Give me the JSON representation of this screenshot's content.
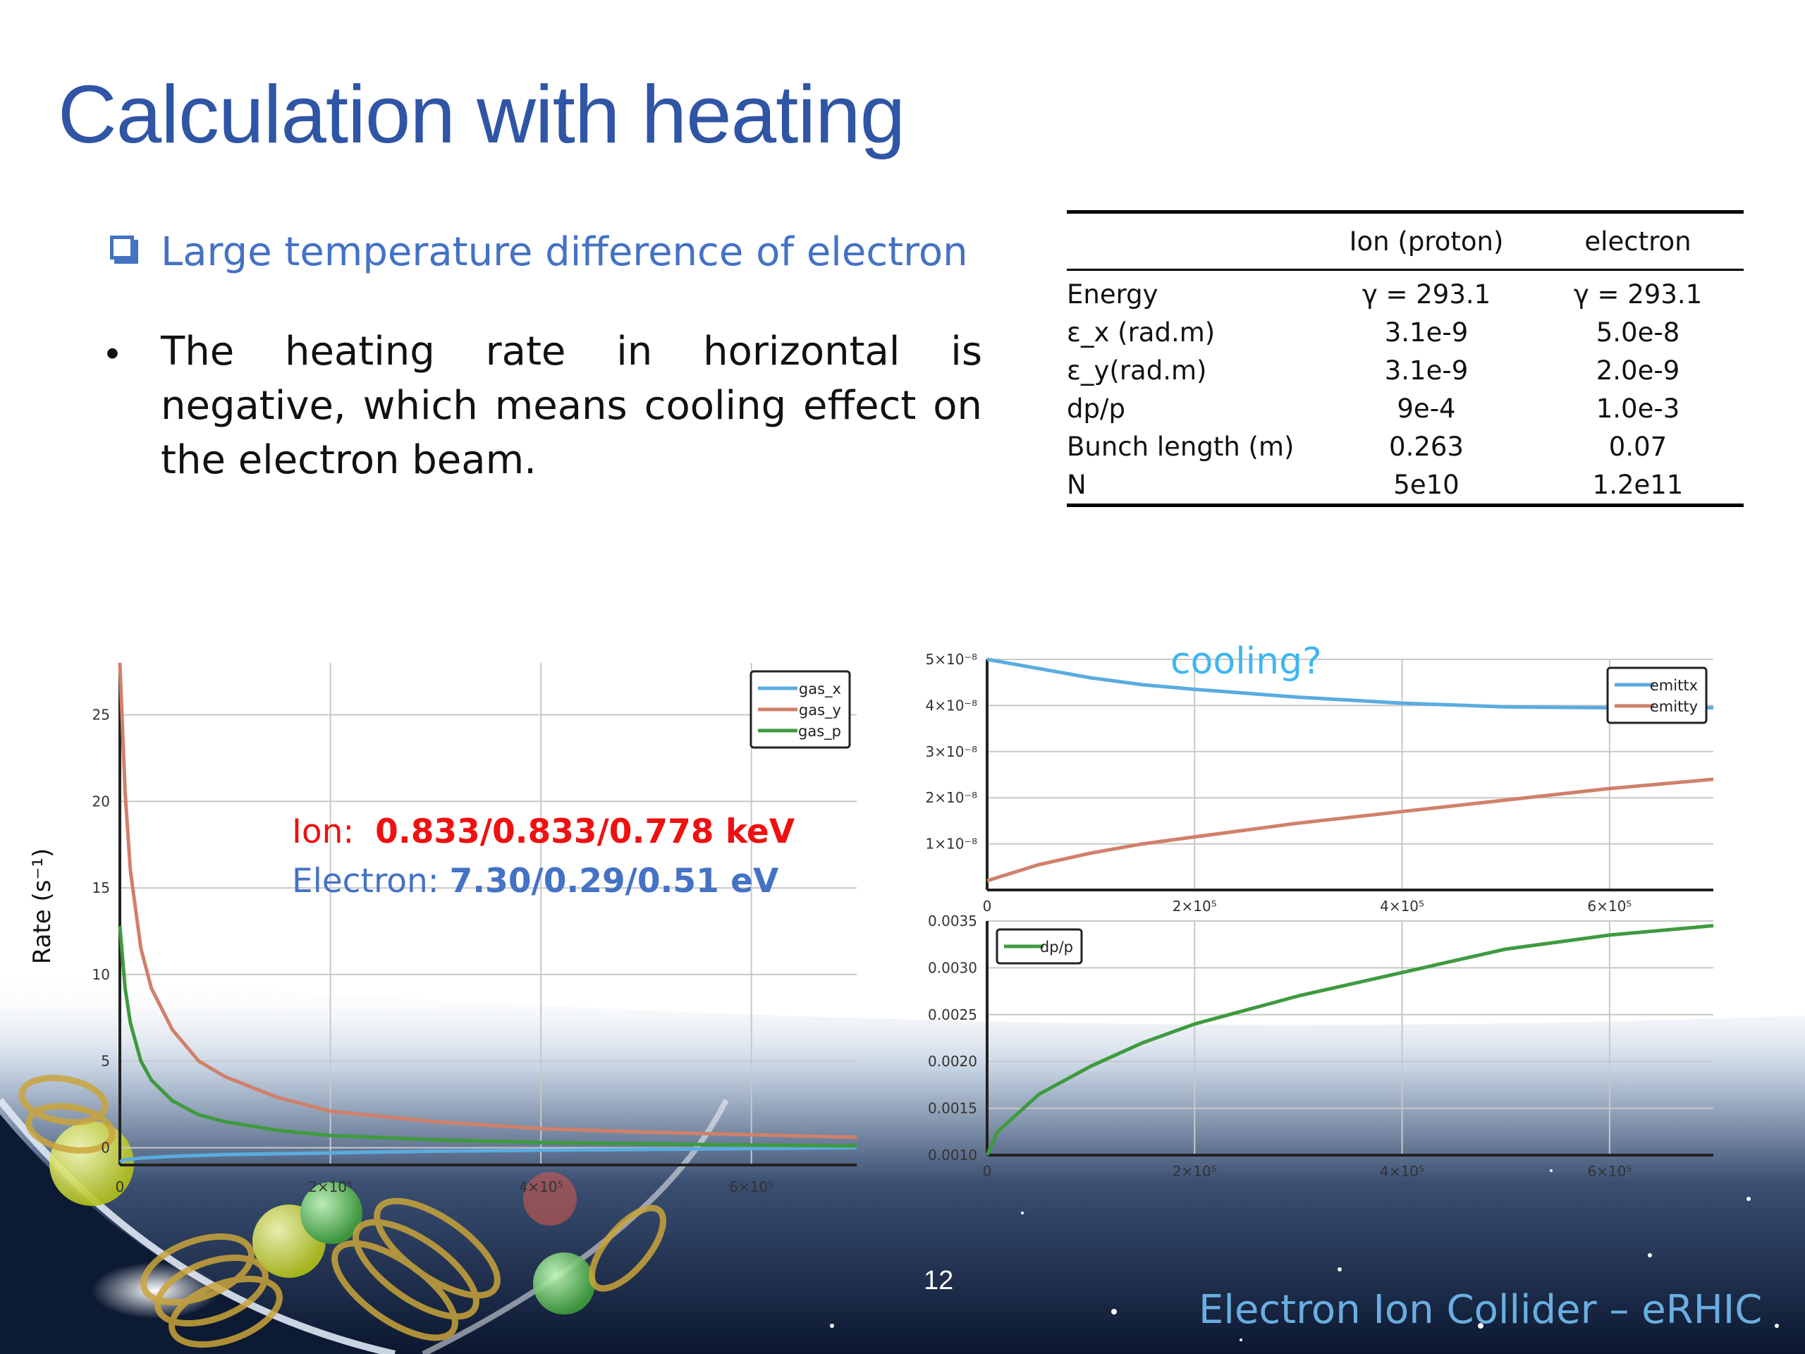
{
  "slide": {
    "title": "Calculation with heating",
    "sub_heading": "Large temperature difference of electron",
    "bullet": "The heating rate in horizontal is negative, which means cooling effect on the electron beam.",
    "page_number": "12",
    "footer": "Electron Ion Collider – eRHIC"
  },
  "table": {
    "headers": [
      "",
      "Ion (proton)",
      "electron"
    ],
    "rows": [
      [
        "Energy",
        "γ = 293.1",
        "γ = 293.1"
      ],
      [
        "ε_x (rad.m)",
        "3.1e-9",
        "5.0e-8"
      ],
      [
        "ε_y(rad.m)",
        "3.1e-9",
        "2.0e-9"
      ],
      [
        "dp/p",
        "9e-4",
        "1.0e-3"
      ],
      [
        "Bunch length (m)",
        "0.263",
        "0.07"
      ],
      [
        "N",
        "5e10",
        "1.2e11"
      ]
    ]
  },
  "annotations": {
    "ion_label": "Ion:",
    "ion_values": "0.833/0.833/0.778 keV",
    "electron_label": "Electron:",
    "electron_values": "7.30/0.29/0.51 eV",
    "cooling": "cooling?"
  },
  "colors": {
    "title": "#2f55a4",
    "blue_series": "#5aace0",
    "red_series": "#d0806a",
    "green_series": "#3f9a3f"
  },
  "chart_data": [
    {
      "type": "line",
      "ylabel": "Rate (s⁻¹)",
      "xlim": [
        0,
        700000
      ],
      "ylim": [
        -1,
        28
      ],
      "x_ticks": [
        0,
        200000,
        400000,
        600000
      ],
      "x_tick_labels": [
        "0",
        "2×10⁵",
        "4×10⁵",
        "6×10⁵"
      ],
      "y_ticks": [
        0,
        5,
        10,
        15,
        20,
        25
      ],
      "y_tick_labels": [
        "0",
        "5",
        "10",
        "15",
        "20",
        "25"
      ],
      "grid": true,
      "legend_position": "top-right",
      "series": [
        {
          "name": "gas_x",
          "color": "#5aace0",
          "x": [
            0,
            5000,
            20000,
            50000,
            100000,
            200000,
            300000,
            400000,
            500000,
            600000,
            700000
          ],
          "y": [
            -0.8,
            -0.7,
            -0.6,
            -0.5,
            -0.4,
            -0.3,
            -0.2,
            -0.15,
            -0.1,
            -0.05,
            0.0
          ]
        },
        {
          "name": "gas_y",
          "color": "#d0806a",
          "x": [
            0,
            5000,
            10000,
            20000,
            30000,
            50000,
            75000,
            100000,
            150000,
            200000,
            300000,
            400000,
            500000,
            600000,
            700000
          ],
          "y": [
            28,
            20.5,
            16,
            11.5,
            9.2,
            6.8,
            5.0,
            4.1,
            2.9,
            2.1,
            1.5,
            1.1,
            0.9,
            0.75,
            0.6
          ]
        },
        {
          "name": "gas_p",
          "color": "#3f9a3f",
          "x": [
            0,
            5000,
            10000,
            20000,
            30000,
            50000,
            75000,
            100000,
            150000,
            200000,
            300000,
            400000,
            500000,
            600000,
            700000
          ],
          "y": [
            12.8,
            9.2,
            7.2,
            5.0,
            3.9,
            2.7,
            1.9,
            1.5,
            1.0,
            0.7,
            0.45,
            0.3,
            0.22,
            0.15,
            0.1
          ]
        }
      ]
    },
    {
      "type": "line",
      "xlim": [
        0,
        700000
      ],
      "ylim": [
        0,
        5e-08
      ],
      "x_ticks": [
        0,
        200000,
        400000,
        600000
      ],
      "x_tick_labels": [
        "0",
        "2×10⁵",
        "4×10⁵",
        "6×10⁵"
      ],
      "y_ticks": [
        1e-08,
        2e-08,
        3e-08,
        4e-08,
        5e-08
      ],
      "y_tick_labels": [
        "1×10⁻⁸",
        "2×10⁻⁸",
        "3×10⁻⁸",
        "4×10⁻⁸",
        "5×10⁻⁸"
      ],
      "grid": true,
      "legend_position": "top-right",
      "series": [
        {
          "name": "emittx",
          "color": "#5aace0",
          "x": [
            0,
            50000,
            100000,
            150000,
            200000,
            300000,
            400000,
            500000,
            600000,
            700000
          ],
          "y": [
            5e-08,
            4.8e-08,
            4.6e-08,
            4.45e-08,
            4.35e-08,
            4.18e-08,
            4.05e-08,
            3.97e-08,
            3.95e-08,
            3.95e-08
          ]
        },
        {
          "name": "emitty",
          "color": "#d0806a",
          "x": [
            0,
            50000,
            100000,
            150000,
            200000,
            300000,
            400000,
            500000,
            600000,
            700000
          ],
          "y": [
            2e-09,
            5.5e-09,
            8e-09,
            1e-08,
            1.15e-08,
            1.45e-08,
            1.7e-08,
            1.95e-08,
            2.2e-08,
            2.4e-08
          ]
        }
      ]
    },
    {
      "type": "line",
      "xlim": [
        0,
        700000
      ],
      "ylim": [
        0.001,
        0.0035
      ],
      "x_ticks": [
        0,
        200000,
        400000,
        600000
      ],
      "x_tick_labels": [
        "0",
        "2×10⁵",
        "4×10⁵",
        "6×10⁵"
      ],
      "y_ticks": [
        0.001,
        0.0015,
        0.002,
        0.0025,
        0.003,
        0.0035
      ],
      "y_tick_labels": [
        "0.0010",
        "0.0015",
        "0.0020",
        "0.0025",
        "0.0030",
        "0.0035"
      ],
      "grid": true,
      "legend_position": "top-left",
      "series": [
        {
          "name": "dp/p",
          "color": "#3f9a3f",
          "x": [
            0,
            10000,
            25000,
            50000,
            100000,
            150000,
            200000,
            300000,
            400000,
            500000,
            600000,
            700000
          ],
          "y": [
            0.001,
            0.00125,
            0.0014,
            0.00165,
            0.00195,
            0.0022,
            0.0024,
            0.0027,
            0.00295,
            0.0032,
            0.00335,
            0.00345
          ]
        }
      ]
    }
  ]
}
